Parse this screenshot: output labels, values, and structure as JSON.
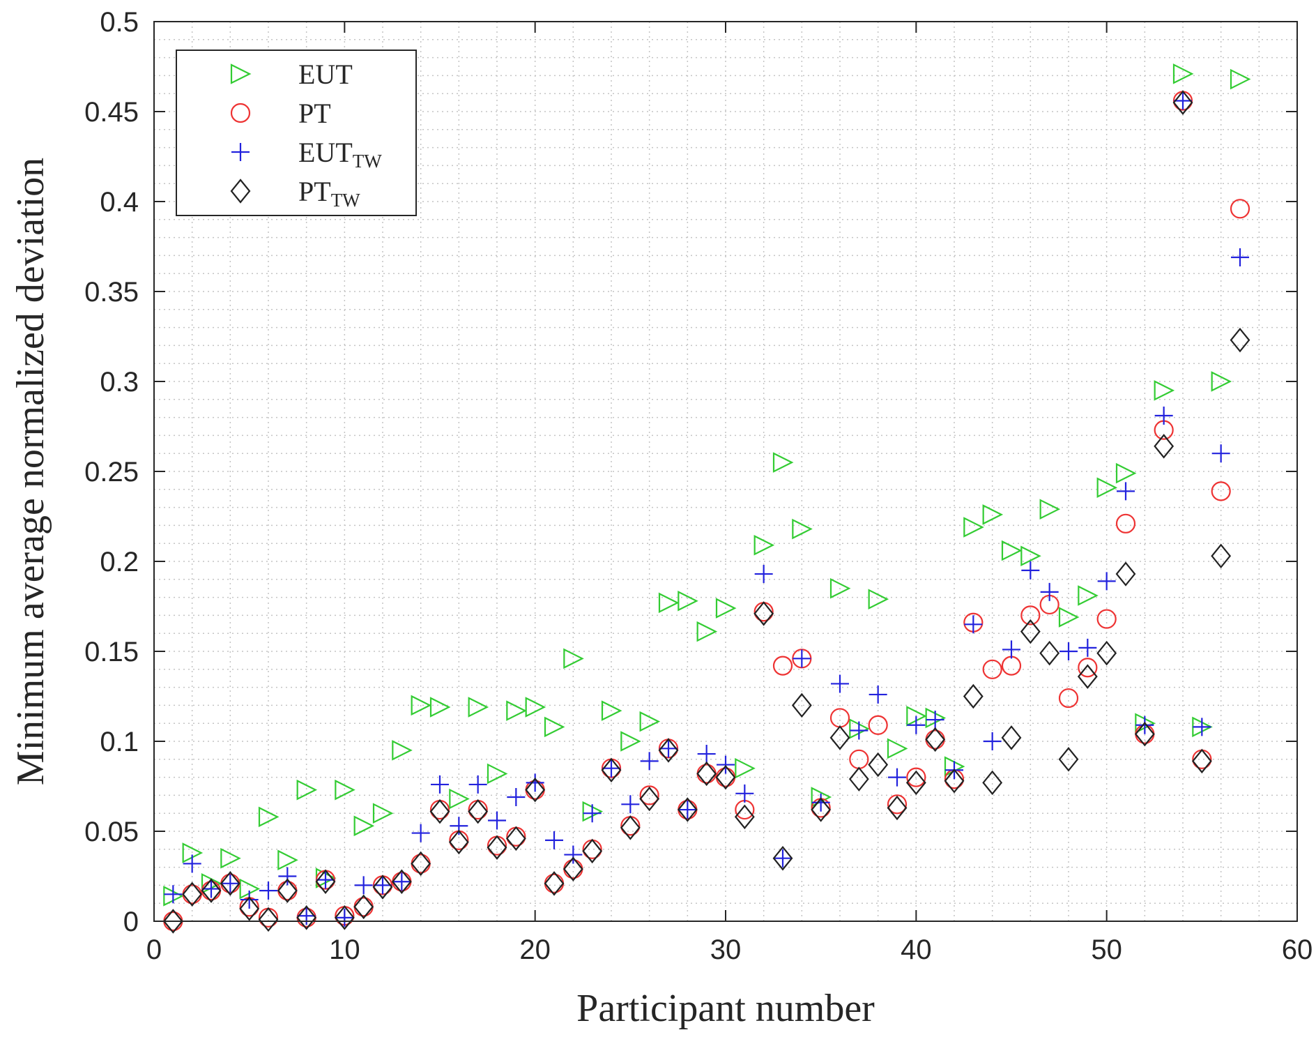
{
  "chart_data": {
    "type": "scatter",
    "xlabel": "Participant number",
    "ylabel": "Minimum average normalized deviation",
    "xlim": [
      0,
      60
    ],
    "ylim": [
      0,
      0.5
    ],
    "xticks": [
      0,
      10,
      20,
      30,
      40,
      50,
      60
    ],
    "xtick_labels": [
      "0",
      "10",
      "20",
      "30",
      "40",
      "50",
      "60"
    ],
    "yticks": [
      0,
      0.05,
      0.1,
      0.15,
      0.2,
      0.25,
      0.3,
      0.35,
      0.4,
      0.45,
      0.5
    ],
    "ytick_labels": [
      "0",
      "0.05",
      "0.1",
      "0.15",
      "0.2",
      "0.25",
      "0.3",
      "0.35",
      "0.4",
      "0.45",
      "0.5"
    ],
    "grid": "dotted minor grid",
    "legend_position": "top-left",
    "series": [
      {
        "name": "EUT",
        "sub": "",
        "marker": "triangle-right",
        "color": "#33cc33",
        "points": [
          [
            1,
            0.014
          ],
          [
            2,
            0.038
          ],
          [
            3,
            0.021
          ],
          [
            4,
            0.035
          ],
          [
            5,
            0.018
          ],
          [
            6,
            0.058
          ],
          [
            7,
            0.034
          ],
          [
            8,
            0.073
          ],
          [
            9,
            0.024
          ],
          [
            10,
            0.073
          ],
          [
            11,
            0.053
          ],
          [
            12,
            0.06
          ],
          [
            13,
            0.095
          ],
          [
            14,
            0.12
          ],
          [
            15,
            0.119
          ],
          [
            16,
            0.068
          ],
          [
            17,
            0.119
          ],
          [
            18,
            0.082
          ],
          [
            19,
            0.117
          ],
          [
            20,
            0.119
          ],
          [
            21,
            0.108
          ],
          [
            22,
            0.146
          ],
          [
            23,
            0.061
          ],
          [
            24,
            0.117
          ],
          [
            25,
            0.1
          ],
          [
            26,
            0.111
          ],
          [
            27,
            0.177
          ],
          [
            28,
            0.178
          ],
          [
            29,
            0.161
          ],
          [
            30,
            0.174
          ],
          [
            31,
            0.085
          ],
          [
            32,
            0.209
          ],
          [
            33,
            0.255
          ],
          [
            34,
            0.218
          ],
          [
            35,
            0.069
          ],
          [
            36,
            0.185
          ],
          [
            37,
            0.107
          ],
          [
            38,
            0.179
          ],
          [
            39,
            0.096
          ],
          [
            40,
            0.114
          ],
          [
            41,
            0.113
          ],
          [
            42,
            0.086
          ],
          [
            43,
            0.219
          ],
          [
            44,
            0.226
          ],
          [
            45,
            0.206
          ],
          [
            46,
            0.203
          ],
          [
            47,
            0.229
          ],
          [
            48,
            0.169
          ],
          [
            49,
            0.181
          ],
          [
            50,
            0.241
          ],
          [
            51,
            0.249
          ],
          [
            52,
            0.11
          ],
          [
            53,
            0.295
          ],
          [
            54,
            0.471
          ],
          [
            55,
            0.108
          ],
          [
            56,
            0.3
          ],
          [
            57,
            0.468
          ]
        ]
      },
      {
        "name": "PT",
        "sub": "",
        "marker": "circle",
        "color": "#ee3333",
        "points": [
          [
            1,
            0.0
          ],
          [
            2,
            0.015
          ],
          [
            3,
            0.017
          ],
          [
            4,
            0.021
          ],
          [
            5,
            0.008
          ],
          [
            6,
            0.002
          ],
          [
            7,
            0.017
          ],
          [
            8,
            0.002
          ],
          [
            9,
            0.023
          ],
          [
            10,
            0.003
          ],
          [
            11,
            0.008
          ],
          [
            12,
            0.02
          ],
          [
            13,
            0.022
          ],
          [
            14,
            0.032
          ],
          [
            15,
            0.062
          ],
          [
            16,
            0.045
          ],
          [
            17,
            0.062
          ],
          [
            18,
            0.042
          ],
          [
            19,
            0.047
          ],
          [
            20,
            0.073
          ],
          [
            21,
            0.021
          ],
          [
            22,
            0.029
          ],
          [
            23,
            0.04
          ],
          [
            24,
            0.085
          ],
          [
            25,
            0.053
          ],
          [
            26,
            0.07
          ],
          [
            27,
            0.096
          ],
          [
            28,
            0.062
          ],
          [
            29,
            0.082
          ],
          [
            30,
            0.08
          ],
          [
            31,
            0.062
          ],
          [
            32,
            0.172
          ],
          [
            33,
            0.142
          ],
          [
            34,
            0.146
          ],
          [
            35,
            0.063
          ],
          [
            36,
            0.113
          ],
          [
            37,
            0.09
          ],
          [
            38,
            0.109
          ],
          [
            39,
            0.065
          ],
          [
            40,
            0.08
          ],
          [
            41,
            0.101
          ],
          [
            42,
            0.079
          ],
          [
            43,
            0.166
          ],
          [
            44,
            0.14
          ],
          [
            45,
            0.142
          ],
          [
            46,
            0.17
          ],
          [
            47,
            0.176
          ],
          [
            48,
            0.124
          ],
          [
            49,
            0.141
          ],
          [
            50,
            0.168
          ],
          [
            51,
            0.221
          ],
          [
            52,
            0.104
          ],
          [
            53,
            0.273
          ],
          [
            54,
            0.456
          ],
          [
            55,
            0.09
          ],
          [
            56,
            0.239
          ],
          [
            57,
            0.396
          ]
        ]
      },
      {
        "name": "EUT",
        "sub": "TW",
        "marker": "plus",
        "color": "#2222dd",
        "points": [
          [
            1,
            0.015
          ],
          [
            2,
            0.032
          ],
          [
            3,
            0.018
          ],
          [
            4,
            0.021
          ],
          [
            5,
            0.012
          ],
          [
            6,
            0.017
          ],
          [
            7,
            0.025
          ],
          [
            8,
            0.003
          ],
          [
            9,
            0.023
          ],
          [
            10,
            0.002
          ],
          [
            11,
            0.02
          ],
          [
            12,
            0.02
          ],
          [
            13,
            0.022
          ],
          [
            14,
            0.049
          ],
          [
            15,
            0.076
          ],
          [
            16,
            0.053
          ],
          [
            17,
            0.076
          ],
          [
            18,
            0.056
          ],
          [
            19,
            0.069
          ],
          [
            20,
            0.077
          ],
          [
            21,
            0.045
          ],
          [
            22,
            0.037
          ],
          [
            23,
            0.06
          ],
          [
            24,
            0.085
          ],
          [
            25,
            0.065
          ],
          [
            26,
            0.089
          ],
          [
            27,
            0.096
          ],
          [
            28,
            0.062
          ],
          [
            29,
            0.093
          ],
          [
            30,
            0.087
          ],
          [
            31,
            0.071
          ],
          [
            32,
            0.193
          ],
          [
            33,
            0.035
          ],
          [
            34,
            0.146
          ],
          [
            35,
            0.066
          ],
          [
            36,
            0.132
          ],
          [
            37,
            0.106
          ],
          [
            38,
            0.126
          ],
          [
            39,
            0.08
          ],
          [
            40,
            0.109
          ],
          [
            41,
            0.112
          ],
          [
            42,
            0.084
          ],
          [
            43,
            0.165
          ],
          [
            44,
            0.1
          ],
          [
            45,
            0.151
          ],
          [
            46,
            0.195
          ],
          [
            47,
            0.183
          ],
          [
            48,
            0.15
          ],
          [
            49,
            0.152
          ],
          [
            50,
            0.189
          ],
          [
            51,
            0.239
          ],
          [
            52,
            0.109
          ],
          [
            53,
            0.281
          ],
          [
            54,
            0.456
          ],
          [
            55,
            0.108
          ],
          [
            56,
            0.26
          ],
          [
            57,
            0.369
          ]
        ]
      },
      {
        "name": "PT",
        "sub": "TW",
        "marker": "diamond",
        "color": "#222222",
        "points": [
          [
            1,
            0.0
          ],
          [
            2,
            0.015
          ],
          [
            3,
            0.017
          ],
          [
            4,
            0.021
          ],
          [
            5,
            0.007
          ],
          [
            6,
            0.001
          ],
          [
            7,
            0.017
          ],
          [
            8,
            0.002
          ],
          [
            9,
            0.022
          ],
          [
            10,
            0.002
          ],
          [
            11,
            0.008
          ],
          [
            12,
            0.019
          ],
          [
            13,
            0.022
          ],
          [
            14,
            0.032
          ],
          [
            15,
            0.061
          ],
          [
            16,
            0.044
          ],
          [
            17,
            0.061
          ],
          [
            18,
            0.041
          ],
          [
            19,
            0.046
          ],
          [
            20,
            0.073
          ],
          [
            21,
            0.021
          ],
          [
            22,
            0.029
          ],
          [
            23,
            0.039
          ],
          [
            24,
            0.084
          ],
          [
            25,
            0.052
          ],
          [
            26,
            0.068
          ],
          [
            27,
            0.095
          ],
          [
            28,
            0.062
          ],
          [
            29,
            0.082
          ],
          [
            30,
            0.08
          ],
          [
            31,
            0.058
          ],
          [
            32,
            0.171
          ],
          [
            33,
            0.035
          ],
          [
            34,
            0.12
          ],
          [
            35,
            0.062
          ],
          [
            36,
            0.102
          ],
          [
            37,
            0.079
          ],
          [
            38,
            0.087
          ],
          [
            39,
            0.063
          ],
          [
            40,
            0.077
          ],
          [
            41,
            0.101
          ],
          [
            42,
            0.078
          ],
          [
            43,
            0.125
          ],
          [
            44,
            0.077
          ],
          [
            45,
            0.102
          ],
          [
            46,
            0.161
          ],
          [
            47,
            0.149
          ],
          [
            48,
            0.09
          ],
          [
            49,
            0.136
          ],
          [
            50,
            0.149
          ],
          [
            51,
            0.193
          ],
          [
            52,
            0.104
          ],
          [
            53,
            0.264
          ],
          [
            54,
            0.455
          ],
          [
            55,
            0.089
          ],
          [
            56,
            0.203
          ],
          [
            57,
            0.323
          ]
        ]
      }
    ]
  }
}
